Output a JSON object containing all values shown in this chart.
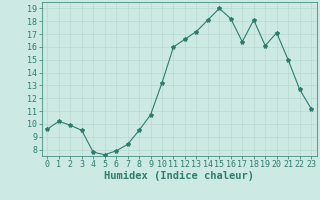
{
  "x": [
    0,
    1,
    2,
    3,
    4,
    5,
    6,
    7,
    8,
    9,
    10,
    11,
    12,
    13,
    14,
    15,
    16,
    17,
    18,
    19,
    20,
    21,
    22,
    23
  ],
  "y": [
    9.6,
    10.2,
    9.9,
    9.5,
    7.8,
    7.6,
    7.9,
    8.4,
    9.5,
    10.7,
    13.2,
    16.0,
    16.6,
    17.2,
    18.1,
    19.0,
    18.2,
    16.4,
    18.1,
    16.1,
    17.1,
    15.0,
    12.7,
    11.2
  ],
  "line_color": "#2d7d6e",
  "marker": "*",
  "marker_size": 3,
  "bg_color": "#cce9e4",
  "grid_color": "#b8d8d2",
  "xlabel": "Humidex (Indice chaleur)",
  "ylim": [
    7.5,
    19.5
  ],
  "xlim": [
    -0.5,
    23.5
  ],
  "yticks": [
    8,
    9,
    10,
    11,
    12,
    13,
    14,
    15,
    16,
    17,
    18,
    19
  ],
  "xticks": [
    0,
    1,
    2,
    3,
    4,
    5,
    6,
    7,
    8,
    9,
    10,
    11,
    12,
    13,
    14,
    15,
    16,
    17,
    18,
    19,
    20,
    21,
    22,
    23
  ],
  "tick_color": "#2d7d6e",
  "label_color": "#2d7d6e",
  "xlabel_fontsize": 7.5,
  "tick_fontsize": 6
}
